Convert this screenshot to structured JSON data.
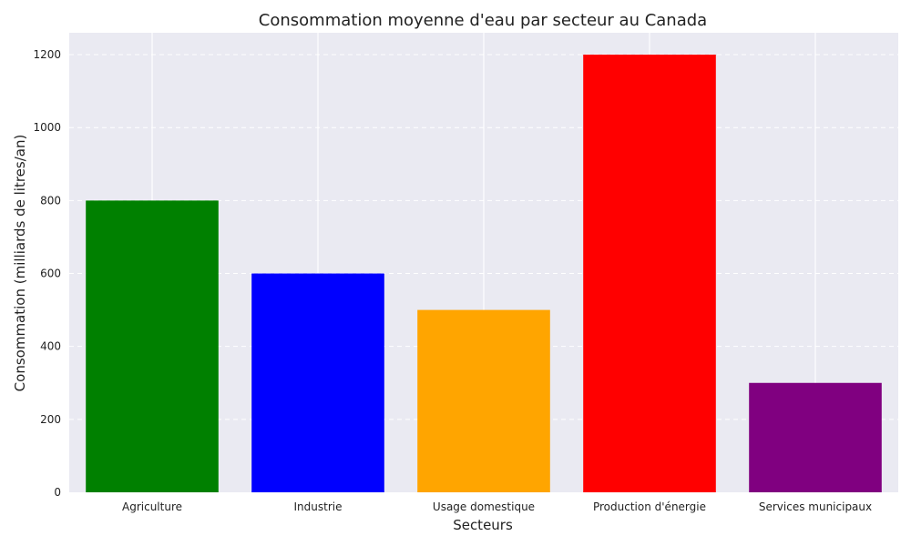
{
  "chart_data": {
    "type": "bar",
    "title": "Consommation moyenne d'eau par secteur au Canada",
    "xlabel": "Secteurs",
    "ylabel": "Consommation (milliards de litres/an)",
    "categories": [
      "Agriculture",
      "Industrie",
      "Usage domestique",
      "Production d'énergie",
      "Services municipaux"
    ],
    "values": [
      800,
      600,
      500,
      1200,
      300
    ],
    "colors": [
      "#008000",
      "#0000ff",
      "#ffa500",
      "#ff0000",
      "#800080"
    ],
    "ylim": [
      0,
      1260
    ],
    "yticks": [
      0,
      200,
      400,
      600,
      800,
      1000,
      1200
    ],
    "grid": true,
    "background": "#eaeaf2"
  }
}
